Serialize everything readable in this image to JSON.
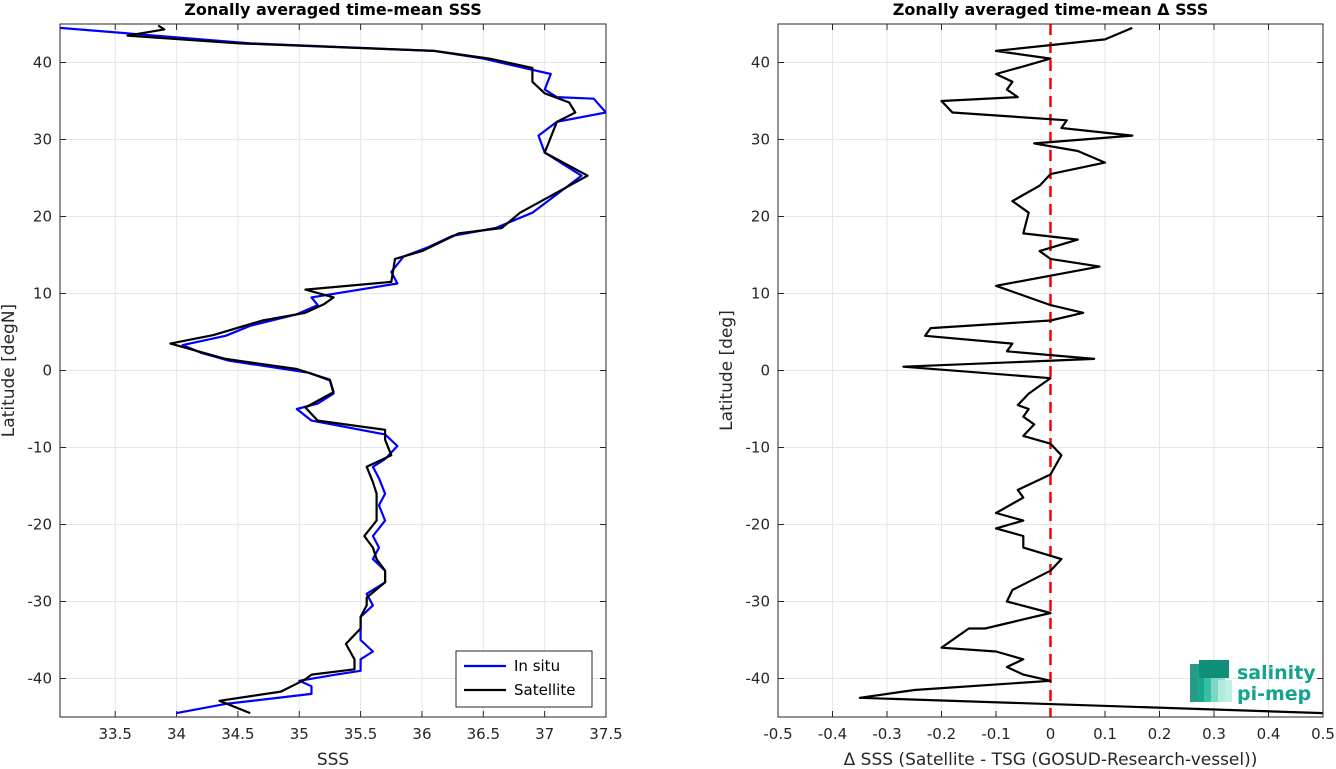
{
  "chart_data": [
    {
      "type": "line",
      "title": "Zonally averaged time-mean SSS",
      "xlabel": "SSS",
      "ylabel": "Latitude [degN]",
      "xlim": [
        33.05,
        37.5
      ],
      "ylim": [
        -45,
        45
      ],
      "xticks": [
        33.5,
        34,
        34.5,
        35,
        35.5,
        36,
        36.5,
        37,
        37.5
      ],
      "yticks": [
        -40,
        -30,
        -20,
        -10,
        0,
        10,
        20,
        30,
        40
      ],
      "xticklabels": [
        "33.5",
        "34",
        "34.5",
        "35",
        "35.5",
        "36",
        "36.5",
        "37",
        "37.5"
      ],
      "yticklabels": [
        "-40",
        "-30",
        "-20",
        "-10",
        "0",
        "10",
        "20",
        "30",
        "40"
      ],
      "grid": true,
      "legend_position": "bottom-right",
      "series": [
        {
          "name": "In situ",
          "color": "#0000ff",
          "points": [
            [
              34.0,
              -44.5
            ],
            [
              34.4,
              -43.3
            ],
            [
              35.1,
              -42.0
            ],
            [
              35.1,
              -41.0
            ],
            [
              35.0,
              -40.3
            ],
            [
              35.3,
              -39.5
            ],
            [
              35.5,
              -39.0
            ],
            [
              35.5,
              -37.5
            ],
            [
              35.6,
              -36.5
            ],
            [
              35.5,
              -35.0
            ],
            [
              35.5,
              -33.5
            ],
            [
              35.5,
              -32.0
            ],
            [
              35.6,
              -30.5
            ],
            [
              35.55,
              -29.0
            ],
            [
              35.7,
              -27.5
            ],
            [
              35.7,
              -26.0
            ],
            [
              35.6,
              -24.5
            ],
            [
              35.65,
              -23.0
            ],
            [
              35.6,
              -21.5
            ],
            [
              35.7,
              -19.5
            ],
            [
              35.65,
              -17.5
            ],
            [
              35.7,
              -16.0
            ],
            [
              35.65,
              -14.0
            ],
            [
              35.6,
              -12.5
            ],
            [
              35.7,
              -11.5
            ],
            [
              35.8,
              -9.8
            ],
            [
              35.7,
              -8.3
            ],
            [
              35.1,
              -6.5
            ],
            [
              34.98,
              -5.0
            ],
            [
              35.15,
              -4.3
            ],
            [
              35.28,
              -3.0
            ],
            [
              35.25,
              -1.3
            ],
            [
              35.08,
              -0.3
            ],
            [
              34.42,
              1.3
            ],
            [
              34.2,
              2.3
            ],
            [
              34.05,
              3.3
            ],
            [
              34.4,
              4.5
            ],
            [
              34.6,
              5.8
            ],
            [
              34.98,
              7.3
            ],
            [
              35.15,
              8.5
            ],
            [
              35.1,
              9.5
            ],
            [
              35.8,
              11.3
            ],
            [
              35.75,
              12.8
            ],
            [
              35.85,
              14.8
            ],
            [
              36.05,
              16.0
            ],
            [
              36.25,
              17.5
            ],
            [
              36.6,
              18.5
            ],
            [
              36.9,
              20.5
            ],
            [
              37.3,
              25.3
            ],
            [
              37.0,
              28.3
            ],
            [
              36.95,
              30.5
            ],
            [
              37.1,
              32.3
            ],
            [
              37.5,
              33.5
            ],
            [
              37.4,
              35.3
            ],
            [
              37.1,
              35.5
            ],
            [
              37.0,
              36.5
            ],
            [
              37.05,
              38.5
            ],
            [
              36.5,
              40.5
            ],
            [
              36.1,
              41.5
            ],
            [
              34.6,
              42.5
            ],
            [
              33.05,
              44.5
            ]
          ]
        },
        {
          "name": "Satellite",
          "color": "#000000",
          "points": [
            [
              34.6,
              -44.5
            ],
            [
              34.35,
              -42.9
            ],
            [
              34.85,
              -41.7
            ],
            [
              35.05,
              -40.1
            ],
            [
              35.1,
              -39.5
            ],
            [
              35.45,
              -38.8
            ],
            [
              35.45,
              -37.5
            ],
            [
              35.38,
              -35.5
            ],
            [
              35.5,
              -33.5
            ],
            [
              35.5,
              -32.0
            ],
            [
              35.55,
              -30.5
            ],
            [
              35.55,
              -29.5
            ],
            [
              35.7,
              -27.5
            ],
            [
              35.7,
              -26.0
            ],
            [
              35.63,
              -24.5
            ],
            [
              35.6,
              -23.0
            ],
            [
              35.53,
              -21.5
            ],
            [
              35.63,
              -19.5
            ],
            [
              35.63,
              -17.5
            ],
            [
              35.63,
              -16.0
            ],
            [
              35.6,
              -14.5
            ],
            [
              35.55,
              -12.5
            ],
            [
              35.75,
              -11.0
            ],
            [
              35.7,
              -9.0
            ],
            [
              35.7,
              -7.7
            ],
            [
              35.15,
              -6.5
            ],
            [
              35.05,
              -4.8
            ],
            [
              35.28,
              -2.8
            ],
            [
              35.25,
              -1.2
            ],
            [
              34.98,
              0.2
            ],
            [
              34.4,
              1.5
            ],
            [
              33.95,
              3.5
            ],
            [
              34.3,
              4.6
            ],
            [
              34.7,
              6.5
            ],
            [
              35.05,
              7.5
            ],
            [
              35.2,
              8.6
            ],
            [
              35.28,
              9.5
            ],
            [
              35.05,
              10.5
            ],
            [
              35.75,
              11.5
            ],
            [
              35.78,
              14.5
            ],
            [
              36.0,
              15.5
            ],
            [
              36.3,
              17.8
            ],
            [
              36.65,
              18.5
            ],
            [
              36.8,
              20.5
            ],
            [
              37.35,
              25.3
            ],
            [
              37.0,
              28.3
            ],
            [
              37.1,
              32.3
            ],
            [
              37.25,
              33.5
            ],
            [
              37.2,
              34.8
            ],
            [
              37.0,
              36.0
            ],
            [
              36.9,
              37.5
            ],
            [
              36.9,
              39.3
            ],
            [
              36.55,
              40.5
            ],
            [
              36.1,
              41.5
            ],
            [
              34.5,
              42.5
            ],
            [
              33.6,
              43.5
            ],
            [
              33.9,
              44.3
            ],
            [
              33.85,
              44.8
            ]
          ]
        }
      ]
    },
    {
      "type": "line",
      "title": "Zonally averaged time-mean Δ SSS",
      "xlabel": "Δ SSS (Satellite - TSG (GOSUD-Research-vessel))",
      "ylabel": "Latitude [deg]",
      "xlim": [
        -0.5,
        0.5
      ],
      "ylim": [
        -45,
        45
      ],
      "xticks": [
        -0.5,
        -0.4,
        -0.3,
        -0.2,
        -0.1,
        0,
        0.1,
        0.2,
        0.3,
        0.4,
        0.5
      ],
      "yticks": [
        -40,
        -30,
        -20,
        -10,
        0,
        10,
        20,
        30,
        40
      ],
      "xticklabels": [
        "-0.5",
        "-0.4",
        "-0.3",
        "-0.2",
        "-0.1",
        "0",
        "0.1",
        "0.2",
        "0.3",
        "0.4",
        "0.5"
      ],
      "yticklabels": [
        "-40",
        "-30",
        "-20",
        "-10",
        "0",
        "10",
        "20",
        "30",
        "40"
      ],
      "grid": true,
      "reference_line": {
        "x": 0,
        "color": "#ff0000",
        "style": "dashed"
      },
      "series": [
        {
          "color": "#000000",
          "points": [
            [
              0.5,
              -44.5
            ],
            [
              -0.35,
              -42.5
            ],
            [
              -0.25,
              -41.5
            ],
            [
              0.0,
              -40.3
            ],
            [
              -0.05,
              -39.5
            ],
            [
              -0.08,
              -38.5
            ],
            [
              -0.05,
              -37.5
            ],
            [
              -0.1,
              -36.5
            ],
            [
              -0.2,
              -36.0
            ],
            [
              -0.18,
              -35.0
            ],
            [
              -0.15,
              -33.5
            ],
            [
              -0.12,
              -33.5
            ],
            [
              0.0,
              -31.5
            ],
            [
              -0.08,
              -30.0
            ],
            [
              -0.07,
              -28.5
            ],
            [
              0.0,
              -26.0
            ],
            [
              0.02,
              -24.5
            ],
            [
              -0.05,
              -23.0
            ],
            [
              -0.05,
              -21.5
            ],
            [
              -0.1,
              -20.5
            ],
            [
              -0.05,
              -19.5
            ],
            [
              -0.1,
              -18.5
            ],
            [
              -0.05,
              -16.5
            ],
            [
              -0.06,
              -15.5
            ],
            [
              0.0,
              -13.5
            ],
            [
              0.02,
              -11.0
            ],
            [
              0.0,
              -9.5
            ],
            [
              -0.05,
              -8.5
            ],
            [
              -0.03,
              -7.0
            ],
            [
              -0.05,
              -6.0
            ],
            [
              -0.04,
              -5.0
            ],
            [
              -0.06,
              -4.5
            ],
            [
              -0.04,
              -3.0
            ],
            [
              -0.02,
              -2.0
            ],
            [
              0.0,
              -1.0
            ],
            [
              -0.27,
              0.5
            ],
            [
              0.08,
              1.5
            ],
            [
              -0.08,
              2.5
            ],
            [
              -0.07,
              3.5
            ],
            [
              -0.23,
              4.5
            ],
            [
              -0.22,
              5.5
            ],
            [
              0.0,
              6.5
            ],
            [
              0.06,
              7.5
            ],
            [
              0.0,
              8.5
            ],
            [
              -0.1,
              11.0
            ],
            [
              0.09,
              13.5
            ],
            [
              0.0,
              14.5
            ],
            [
              -0.02,
              15.5
            ],
            [
              0.05,
              17.0
            ],
            [
              -0.05,
              17.8
            ],
            [
              -0.04,
              20.5
            ],
            [
              -0.07,
              22.0
            ],
            [
              -0.02,
              24.0
            ],
            [
              0.0,
              25.5
            ],
            [
              0.1,
              27.0
            ],
            [
              0.05,
              28.5
            ],
            [
              -0.03,
              29.5
            ],
            [
              0.15,
              30.5
            ],
            [
              0.02,
              31.5
            ],
            [
              0.03,
              32.5
            ],
            [
              -0.18,
              33.5
            ],
            [
              -0.2,
              35.0
            ],
            [
              -0.06,
              35.5
            ],
            [
              -0.08,
              36.5
            ],
            [
              -0.07,
              37.5
            ],
            [
              -0.1,
              38.5
            ],
            [
              -0.05,
              39.5
            ],
            [
              0.0,
              40.5
            ],
            [
              -0.1,
              41.5
            ],
            [
              0.1,
              43.0
            ],
            [
              0.15,
              44.5
            ]
          ]
        }
      ]
    }
  ],
  "logo": {
    "line1": "salinity",
    "line2": "pi-mep",
    "color": "#14a38c"
  }
}
